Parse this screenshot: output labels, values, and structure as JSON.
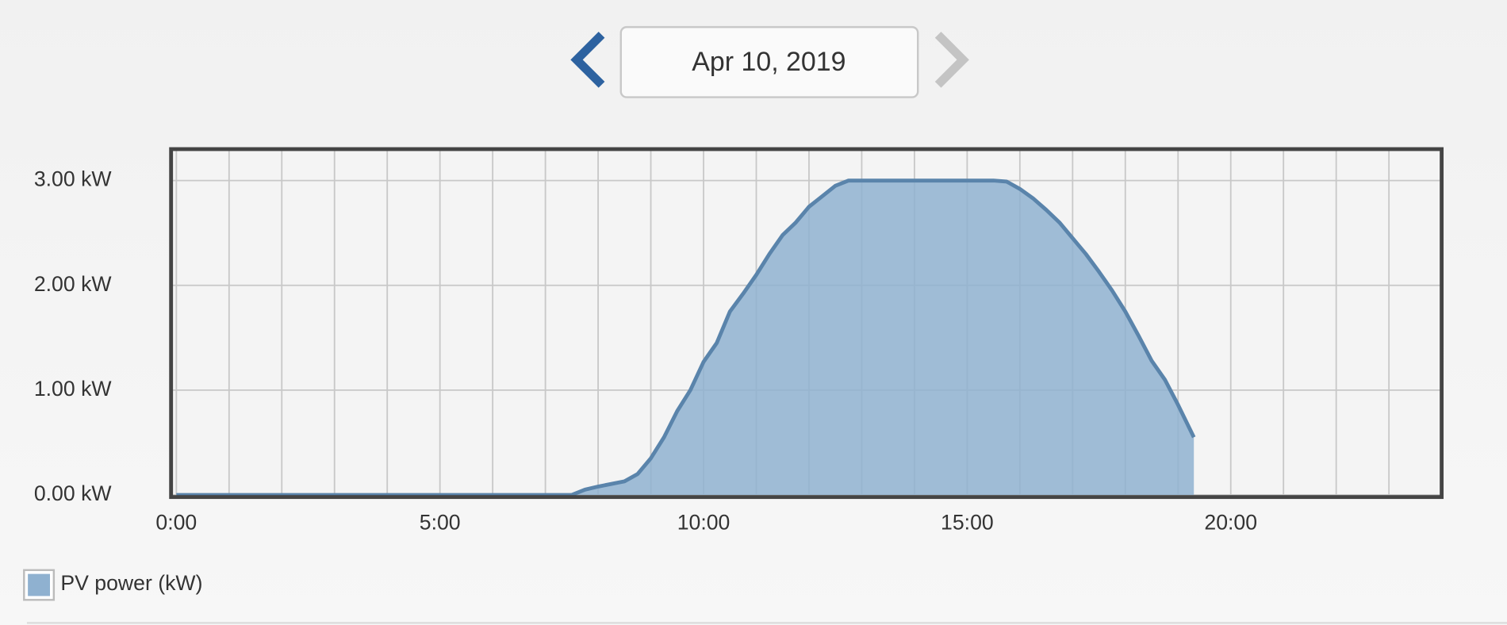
{
  "header": {
    "date": "Apr 10, 2019"
  },
  "chart_data": {
    "type": "area",
    "x": [
      0,
      7.5,
      7.75,
      8.0,
      8.5,
      8.75,
      9.0,
      9.25,
      9.5,
      9.75,
      10.0,
      10.25,
      10.5,
      10.75,
      11.0,
      11.25,
      11.5,
      11.75,
      12.0,
      12.25,
      12.5,
      12.75,
      13.0,
      13.5,
      14.0,
      14.5,
      15.0,
      15.5,
      15.75,
      16.0,
      16.25,
      16.5,
      16.75,
      17.0,
      17.25,
      17.5,
      17.75,
      18.0,
      18.25,
      18.5,
      18.75,
      19.0,
      19.3
    ],
    "series": [
      {
        "name": "PV power (kW)",
        "color": "#8fb1d0",
        "values": [
          0,
          0,
          0.05,
          0.08,
          0.13,
          0.2,
          0.35,
          0.55,
          0.8,
          1.0,
          1.27,
          1.45,
          1.75,
          1.92,
          2.1,
          2.3,
          2.48,
          2.6,
          2.75,
          2.85,
          2.95,
          3.0,
          3.0,
          3.0,
          3.0,
          3.0,
          3.0,
          3.0,
          2.99,
          2.92,
          2.83,
          2.72,
          2.6,
          2.45,
          2.3,
          2.13,
          1.95,
          1.75,
          1.52,
          1.28,
          1.1,
          0.86,
          0.55
        ]
      }
    ],
    "xlim": [
      -0.1,
      24
    ],
    "xticks": [
      {
        "value": 0,
        "label": "0:00"
      },
      {
        "value": 5,
        "label": "5:00"
      },
      {
        "value": 10,
        "label": "10:00"
      },
      {
        "value": 15,
        "label": "15:00"
      },
      {
        "value": 20,
        "label": "20:00"
      }
    ],
    "xminorticks": [
      1,
      2,
      3,
      4,
      6,
      7,
      8,
      9,
      11,
      12,
      13,
      14,
      16,
      17,
      18,
      19,
      21,
      22,
      23
    ],
    "ylim": [
      -0.02,
      3.3
    ],
    "yticks": [
      {
        "value": 0,
        "label": "0.00 kW"
      },
      {
        "value": 1,
        "label": "1.00 kW"
      },
      {
        "value": 2,
        "label": "2.00 kW"
      },
      {
        "value": 3,
        "label": "3.00 kW"
      }
    ],
    "grid": true
  }
}
